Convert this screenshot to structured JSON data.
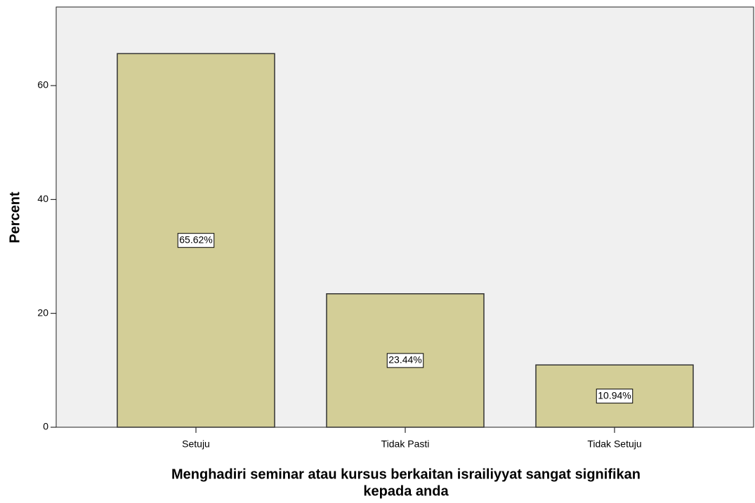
{
  "chart_data": {
    "type": "bar",
    "categories": [
      "Setuju",
      "Tidak Pasti",
      "Tidak Setuju"
    ],
    "values": [
      65.62,
      23.44,
      10.94
    ],
    "value_labels": [
      "65.62%",
      "23.44%",
      "10.94%"
    ],
    "color": "#d3ce97",
    "y_label": "Percent",
    "x_label": [
      "Menghadiri seminar atau kursus berkaitan israiliyyat sangat signifikan",
      "kepada anda"
    ],
    "ylim": [
      0,
      73.8
    ],
    "yticks": [
      0,
      20,
      40,
      60
    ],
    "grid": false
  }
}
